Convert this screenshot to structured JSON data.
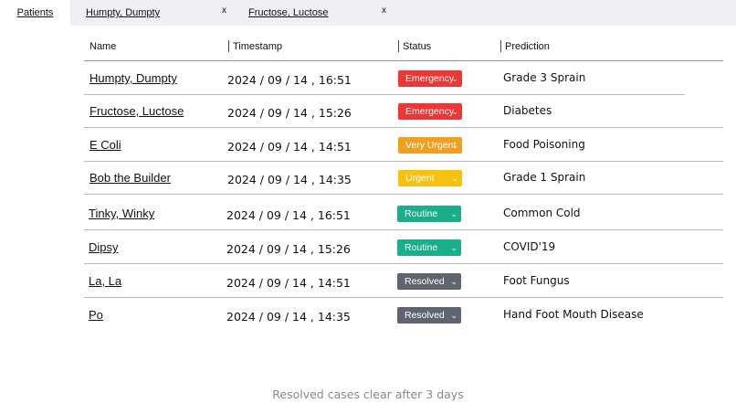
{
  "tabs": [
    {
      "label": "Patients",
      "active": true
    },
    {
      "label": "Humpty, Dumpty",
      "close": "x"
    },
    {
      "label": "Fructose, Luctose",
      "close": "x"
    }
  ],
  "table": {
    "headers": {
      "name": "Name",
      "timestamp": "Timestamp",
      "status": "Status",
      "prediction": "Prediction"
    },
    "rows": [
      {
        "name": "Humpty, Dumpty",
        "timestamp": "2024 / 09 / 14 , 16:51",
        "status": "Emergency",
        "prediction": "Grade 3 Sprain"
      },
      {
        "name": "Fructose, Luctose",
        "timestamp": "2024 / 09 / 14 , 15:26",
        "status": "Emergency",
        "prediction": "Diabetes"
      },
      {
        "name": "E Coli",
        "timestamp": "2024 / 09 / 14 , 14:51",
        "status": "Very Urgent",
        "prediction": "Food Poisoning"
      },
      {
        "name": "Bob the Builder",
        "timestamp": "2024 / 09 / 14 , 14:35",
        "status": "Urgent",
        "prediction": "Grade 1 Sprain"
      },
      {
        "name": "Tinky, Winky",
        "timestamp": "2024 / 09 / 14 , 16:51",
        "status": "Routine",
        "prediction": "Common Cold"
      },
      {
        "name": "Dipsy",
        "timestamp": "2024 / 09 / 14 , 15:26",
        "status": "Routine",
        "prediction": "COVID'19"
      },
      {
        "name": "La, La",
        "timestamp": "2024 / 09 / 14 , 14:51",
        "status": "Resolved",
        "prediction": "Foot Fungus"
      },
      {
        "name": "Po",
        "timestamp": "2024 / 09 / 14 , 14:35",
        "status": "Resolved",
        "prediction": "Hand Foot Mouth Disease"
      }
    ]
  },
  "status_colors": {
    "Emergency": "#ef3535",
    "Very Urgent": "#f0a020",
    "Urgent": "#f5c211",
    "Routine": "#1aaf8b",
    "Resolved": "#5f6570"
  },
  "chevron_icon": "chevron-down-icon",
  "footer": "Resolved cases clear after 3 days"
}
